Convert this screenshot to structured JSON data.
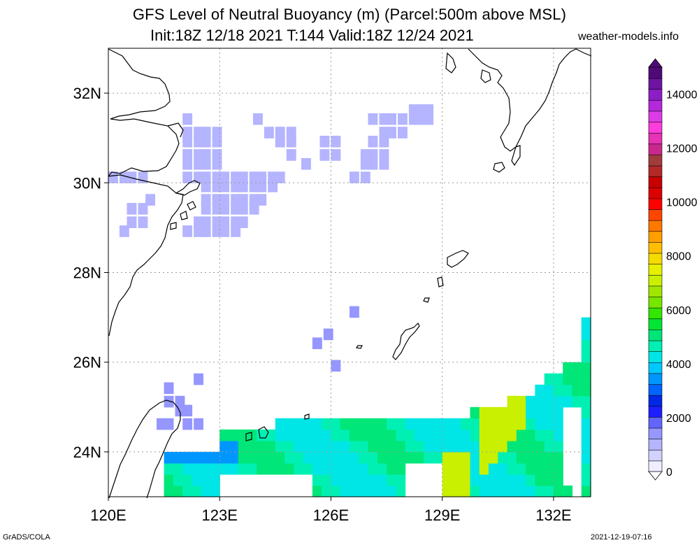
{
  "header": {
    "title": "GFS Level of Neutral Buoyancy (m) (Parcel:500m above MSL)",
    "subtitle": "Init:18Z 12/18 2021 T:144 Valid:18Z 12/24 2021",
    "site": "weather-models.info"
  },
  "footer": {
    "left": "GrADS/COLA",
    "right": "2021-12-19-07:16"
  },
  "chart_data": {
    "type": "heatmap",
    "title": "GFS Level of Neutral Buoyancy (m) (Parcel:500m above MSL)",
    "subtitle": "Init:18Z 12/18 2021 T:144 Valid:18Z 12/24 2021",
    "xlabel": "",
    "ylabel": "",
    "xlim": [
      120,
      133
    ],
    "ylim": [
      23,
      33
    ],
    "x_ticks": [
      "120E",
      "123E",
      "126E",
      "129E",
      "132E"
    ],
    "x_tick_values": [
      120,
      123,
      126,
      129,
      132
    ],
    "y_ticks": [
      "24N",
      "26N",
      "28N",
      "30N",
      "32N"
    ],
    "y_tick_values": [
      24,
      26,
      28,
      30,
      32
    ],
    "grid": true,
    "colorbar": {
      "min": 0,
      "max": 15000,
      "labels": [
        "0",
        "2000",
        "4000",
        "6000",
        "8000",
        "10000",
        "12000",
        "14000"
      ],
      "label_values": [
        0,
        2000,
        4000,
        6000,
        8000,
        10000,
        12000,
        14000
      ],
      "colors": [
        "#eeeeff",
        "#d2d2ff",
        "#b4b4ff",
        "#9696ff",
        "#6464ff",
        "#1e1eff",
        "#0028e6",
        "#0064ff",
        "#0096ff",
        "#00c8ff",
        "#00e6e6",
        "#00f0b4",
        "#00e678",
        "#00e632",
        "#32e600",
        "#78e600",
        "#a0e600",
        "#c8f000",
        "#e6f000",
        "#f5dc00",
        "#ffbe00",
        "#ffa000",
        "#ff7800",
        "#ff4600",
        "#ff0000",
        "#dc0000",
        "#c80000",
        "#b42828",
        "#a03c3c",
        "#c8288c",
        "#e632b4",
        "#ff3cdc",
        "#dc3ce6",
        "#b428dc",
        "#8c1ec8",
        "#6e14a0",
        "#500a78"
      ],
      "position": "right"
    },
    "cell_size_deg": [
      0.25,
      0.25
    ],
    "regions": [
      {
        "name": "blue-north",
        "value": 1200,
        "cells": [
          [
            122.0,
            31.3
          ],
          [
            123.9,
            31.3
          ],
          [
            124.2,
            31.0
          ],
          [
            124.5,
            31.0
          ],
          [
            124.8,
            31.0
          ],
          [
            124.5,
            30.8
          ],
          [
            124.8,
            30.8
          ],
          [
            124.8,
            30.5
          ],
          [
            125.2,
            30.3
          ],
          [
            125.7,
            30.8
          ],
          [
            126.0,
            30.8
          ],
          [
            125.7,
            30.5
          ],
          [
            126.0,
            30.5
          ],
          [
            127.0,
            31.3
          ],
          [
            127.3,
            31.3
          ],
          [
            127.5,
            31.3
          ],
          [
            127.8,
            31.3
          ],
          [
            127.3,
            31.0
          ],
          [
            127.5,
            31.0
          ],
          [
            127.8,
            31.0
          ],
          [
            128.1,
            31.5
          ],
          [
            128.3,
            31.5
          ],
          [
            128.5,
            31.5
          ],
          [
            128.1,
            31.3
          ],
          [
            128.3,
            31.3
          ],
          [
            128.5,
            31.3
          ],
          [
            127.0,
            30.8
          ],
          [
            127.3,
            30.8
          ],
          [
            126.8,
            30.5
          ],
          [
            127.0,
            30.5
          ],
          [
            127.3,
            30.5
          ],
          [
            126.8,
            30.3
          ],
          [
            127.0,
            30.3
          ],
          [
            127.3,
            30.3
          ],
          [
            126.5,
            30.0
          ],
          [
            126.8,
            30.0
          ],
          [
            122.0,
            31.0
          ],
          [
            122.3,
            31.0
          ],
          [
            122.5,
            31.0
          ],
          [
            122.8,
            31.0
          ],
          [
            122.0,
            30.8
          ],
          [
            122.3,
            30.8
          ],
          [
            122.5,
            30.8
          ],
          [
            122.8,
            30.8
          ],
          [
            122.0,
            30.5
          ],
          [
            122.3,
            30.5
          ],
          [
            122.5,
            30.5
          ],
          [
            122.8,
            30.5
          ],
          [
            122.0,
            30.3
          ],
          [
            122.3,
            30.3
          ],
          [
            122.5,
            30.3
          ],
          [
            122.8,
            30.3
          ],
          [
            122.0,
            30.0
          ],
          [
            122.3,
            30.0
          ],
          [
            122.5,
            30.0
          ],
          [
            122.8,
            30.0
          ],
          [
            123.0,
            30.0
          ],
          [
            123.3,
            30.0
          ],
          [
            123.5,
            30.0
          ],
          [
            123.8,
            30.0
          ],
          [
            124.0,
            30.0
          ],
          [
            124.3,
            30.0
          ],
          [
            124.5,
            30.0
          ],
          [
            122.5,
            29.8
          ],
          [
            122.8,
            29.8
          ],
          [
            123.0,
            29.8
          ],
          [
            123.3,
            29.8
          ],
          [
            123.5,
            29.8
          ],
          [
            123.8,
            29.8
          ],
          [
            124.0,
            29.8
          ],
          [
            124.3,
            29.8
          ],
          [
            122.5,
            29.5
          ],
          [
            122.8,
            29.5
          ],
          [
            123.0,
            29.5
          ],
          [
            123.3,
            29.5
          ],
          [
            123.5,
            29.5
          ],
          [
            123.8,
            29.5
          ],
          [
            124.0,
            29.5
          ],
          [
            122.5,
            29.3
          ],
          [
            122.8,
            29.3
          ],
          [
            123.0,
            29.3
          ],
          [
            123.3,
            29.3
          ],
          [
            123.5,
            29.3
          ],
          [
            123.8,
            29.3
          ],
          [
            122.3,
            29.0
          ],
          [
            122.5,
            29.0
          ],
          [
            122.8,
            29.0
          ],
          [
            123.0,
            29.0
          ],
          [
            123.3,
            29.0
          ],
          [
            123.5,
            29.0
          ],
          [
            122.0,
            28.8
          ],
          [
            122.3,
            28.8
          ],
          [
            122.5,
            28.8
          ],
          [
            122.8,
            28.8
          ],
          [
            123.0,
            28.8
          ],
          [
            123.3,
            28.8
          ],
          [
            120.0,
            30.0
          ],
          [
            120.3,
            30.0
          ],
          [
            120.5,
            30.0
          ],
          [
            120.8,
            30.0
          ],
          [
            121.0,
            29.5
          ],
          [
            120.5,
            29.3
          ],
          [
            120.8,
            29.3
          ],
          [
            120.5,
            29.0
          ],
          [
            120.8,
            29.0
          ],
          [
            120.3,
            28.8
          ]
        ]
      },
      {
        "name": "blue-scattered",
        "value": 1300,
        "cells": [
          [
            126.5,
            27.0
          ],
          [
            125.8,
            26.5
          ],
          [
            125.5,
            26.3
          ],
          [
            126.0,
            25.8
          ],
          [
            122.3,
            25.5
          ]
        ]
      },
      {
        "name": "taiwan-blue",
        "value": 1500,
        "cells": [
          [
            121.5,
            25.3
          ],
          [
            121.5,
            25.0
          ],
          [
            121.8,
            25.0
          ],
          [
            121.8,
            24.8
          ],
          [
            122.0,
            24.8
          ],
          [
            122.0,
            24.5
          ],
          [
            122.3,
            24.5
          ],
          [
            121.3,
            24.5
          ],
          [
            121.5,
            24.5
          ]
        ]
      },
      {
        "name": "green-band",
        "value": 5000,
        "cells": []
      },
      {
        "name": "yellow-core",
        "value": 7200,
        "cells": []
      }
    ]
  }
}
